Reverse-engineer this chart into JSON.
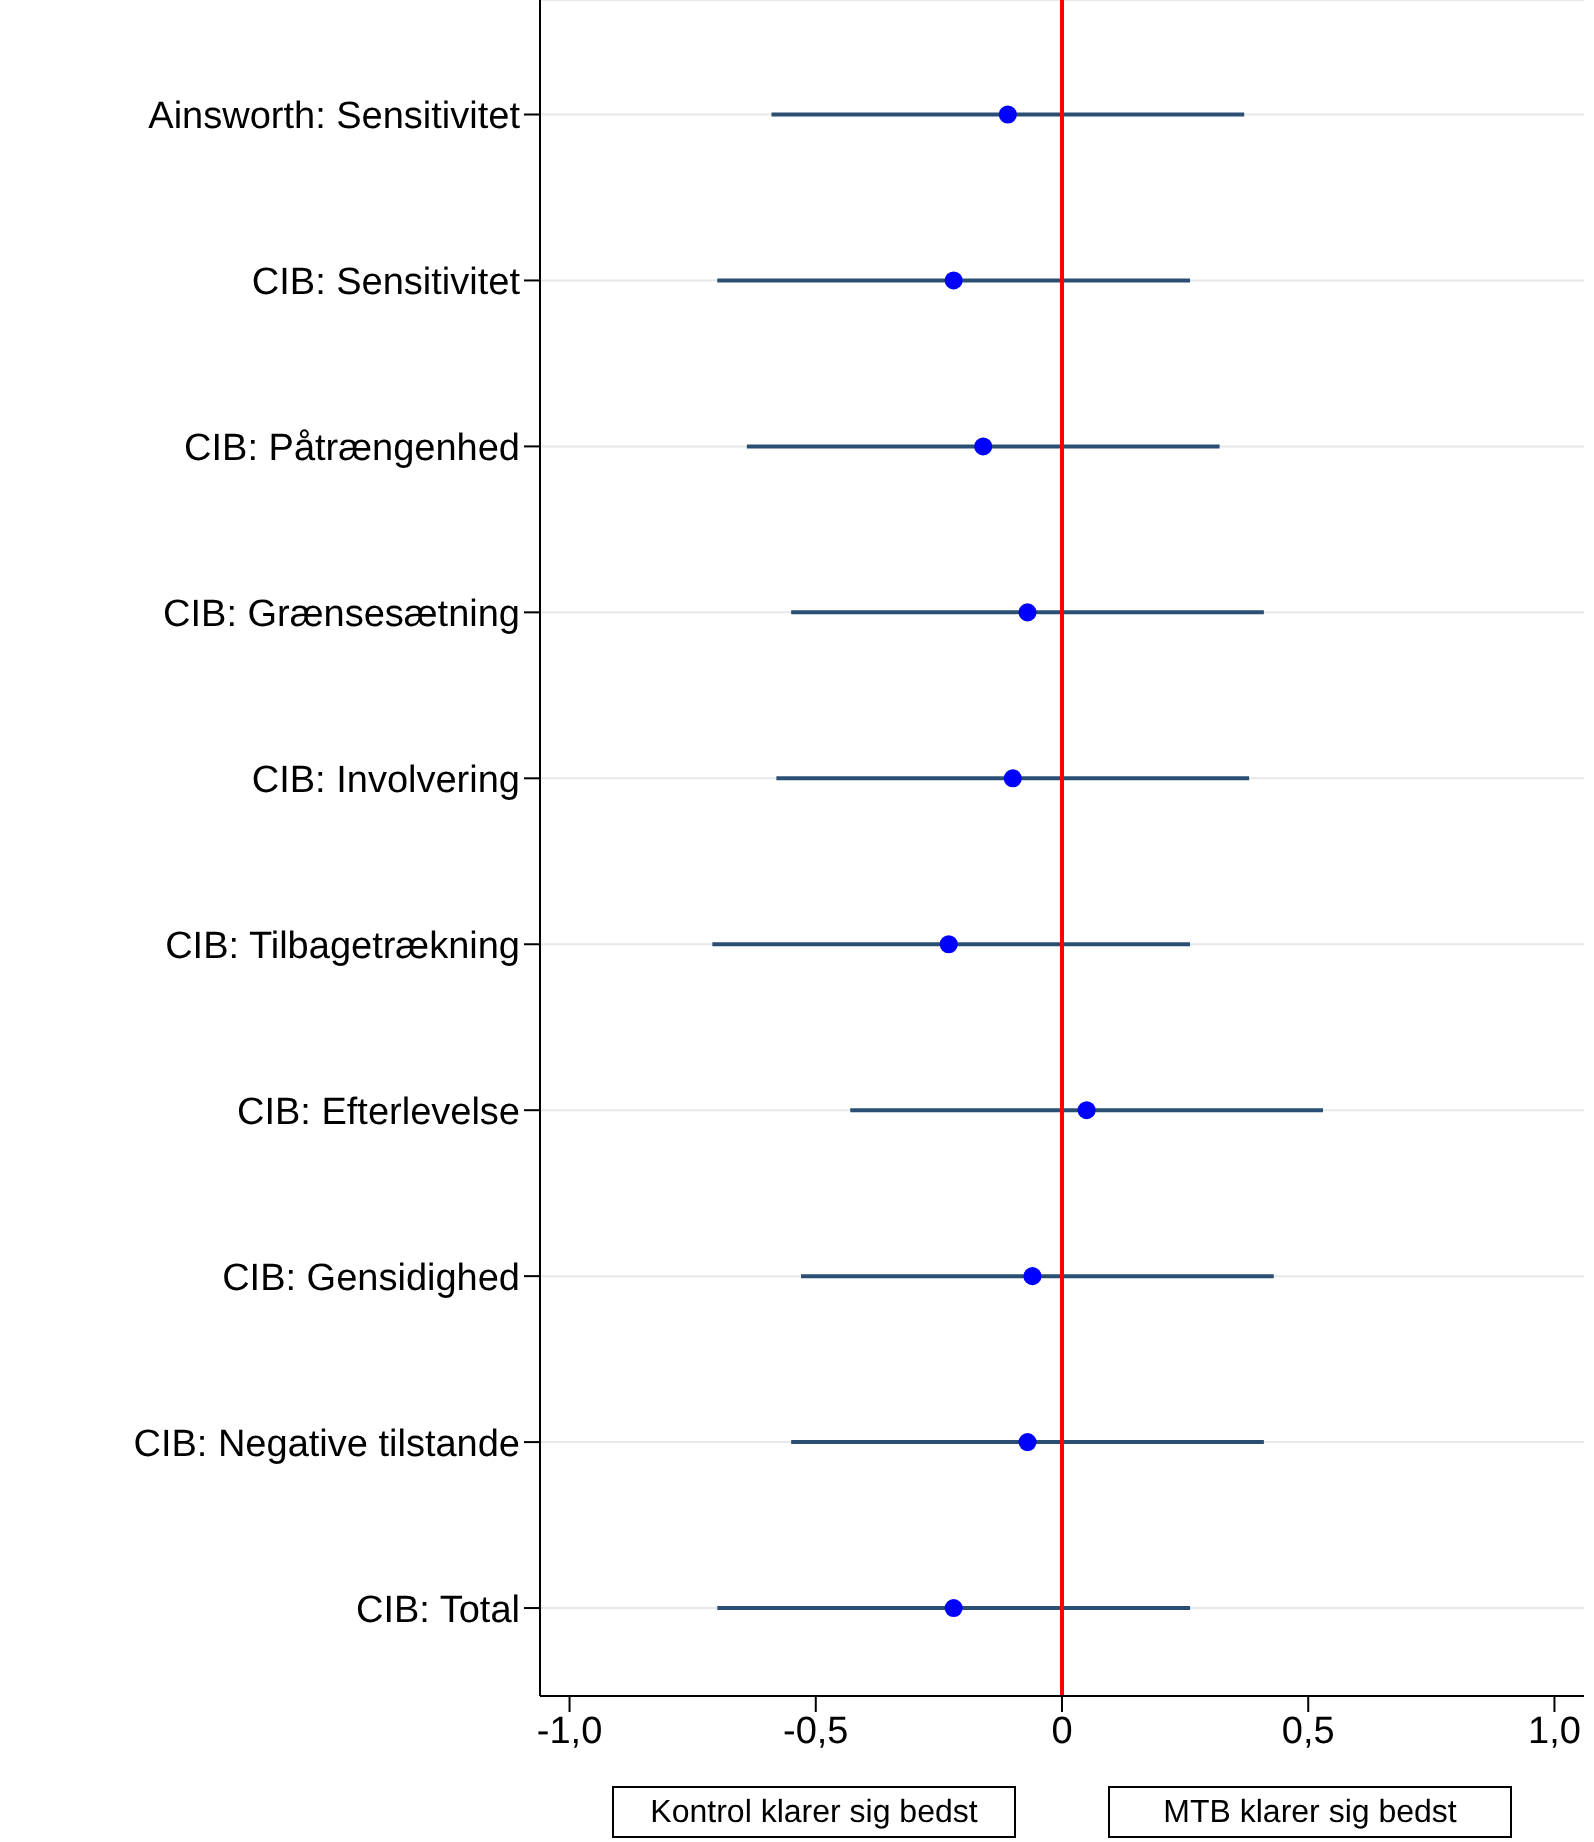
{
  "chart_data": {
    "type": "scatter",
    "orientation": "horizontal",
    "categories": [
      "Ainsworth: Sensitivitet",
      "CIB: Sensitivitet",
      "CIB: Påtrængenhed",
      "CIB: Grænsesætning",
      "CIB: Involvering",
      "CIB: Tilbagetrækning",
      "CIB: Efterlevelse",
      "CIB: Gensidighed",
      "CIB: Negative tilstande",
      "CIB: Total"
    ],
    "values": [
      -0.11,
      -0.22,
      -0.16,
      -0.07,
      -0.1,
      -0.23,
      0.05,
      -0.06,
      -0.07,
      -0.22
    ],
    "errors": [
      [
        -0.59,
        0.37
      ],
      [
        -0.7,
        0.26
      ],
      [
        -0.64,
        0.32
      ],
      [
        -0.55,
        0.41
      ],
      [
        -0.58,
        0.38
      ],
      [
        -0.71,
        0.26
      ],
      [
        -0.43,
        0.53
      ],
      [
        -0.53,
        0.43
      ],
      [
        -0.55,
        0.41
      ],
      [
        -0.7,
        0.26
      ]
    ],
    "color": "#0000ff",
    "marker": "circle",
    "xlim": [
      -1.06,
      1.06
    ],
    "xticks": [
      {
        "value": -1,
        "label": "-1,0"
      },
      {
        "value": -0.5,
        "label": "-0,5"
      },
      0,
      {
        "value": 0.5,
        "label": "0,5"
      },
      {
        "value": 1,
        "label": "1,0"
      }
    ],
    "ref_lines": [
      {
        "axis": "x",
        "value": 0,
        "color": "#ff0000"
      }
    ],
    "grid": "y",
    "annotations": [
      "Kontrol klarer sig bedst",
      "MTB klarer sig bedst"
    ]
  }
}
